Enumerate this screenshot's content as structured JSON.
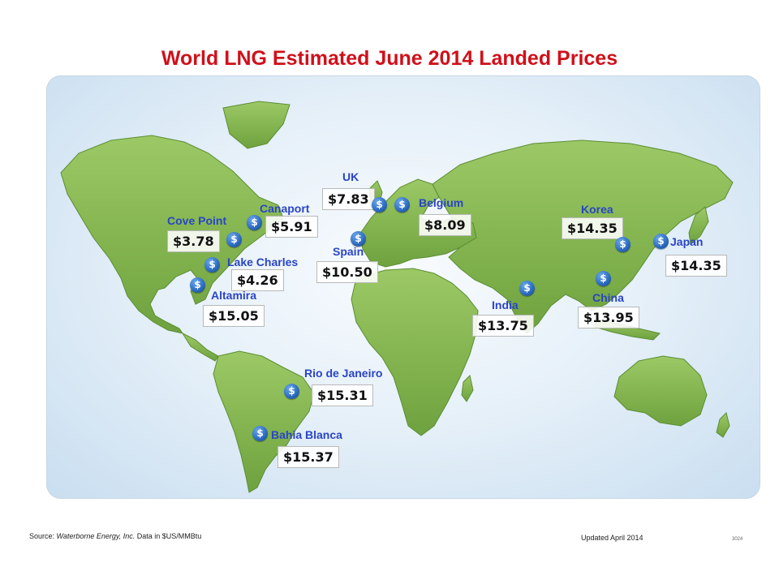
{
  "title": "World LNG Estimated June 2014 Landed Prices",
  "coin_icon_glyph": "$",
  "locations": [
    {
      "name": "Cove Point",
      "price": "$3.78"
    },
    {
      "name": "Canaport",
      "price": "$5.91"
    },
    {
      "name": "Lake Charles",
      "price": "$4.26"
    },
    {
      "name": "Altamira",
      "price": "$15.05"
    },
    {
      "name": "UK",
      "price": "$7.83"
    },
    {
      "name": "Belgium",
      "price": "$8.09"
    },
    {
      "name": "Spain",
      "price": "$10.50"
    },
    {
      "name": "Korea",
      "price": "$14.35"
    },
    {
      "name": "Japan",
      "price": "$14.35"
    },
    {
      "name": "India",
      "price": "$13.75"
    },
    {
      "name": "China",
      "price": "$13.95"
    },
    {
      "name": "Rio de Janeiro",
      "price": "$15.31"
    },
    {
      "name": "Bahia Blanca",
      "price": "$15.37"
    }
  ],
  "footer": {
    "source_prefix": "Source:",
    "source_name": "Waterborne Energy, Inc.",
    "source_suffix": "Data in $US/MMBtu",
    "updated": "Updated April 2014",
    "slide_number": "3024"
  },
  "colors": {
    "title": "#d0101a",
    "label": "#2a45c4",
    "land": "#7fb24a",
    "ocean": "#e7f1f9"
  }
}
